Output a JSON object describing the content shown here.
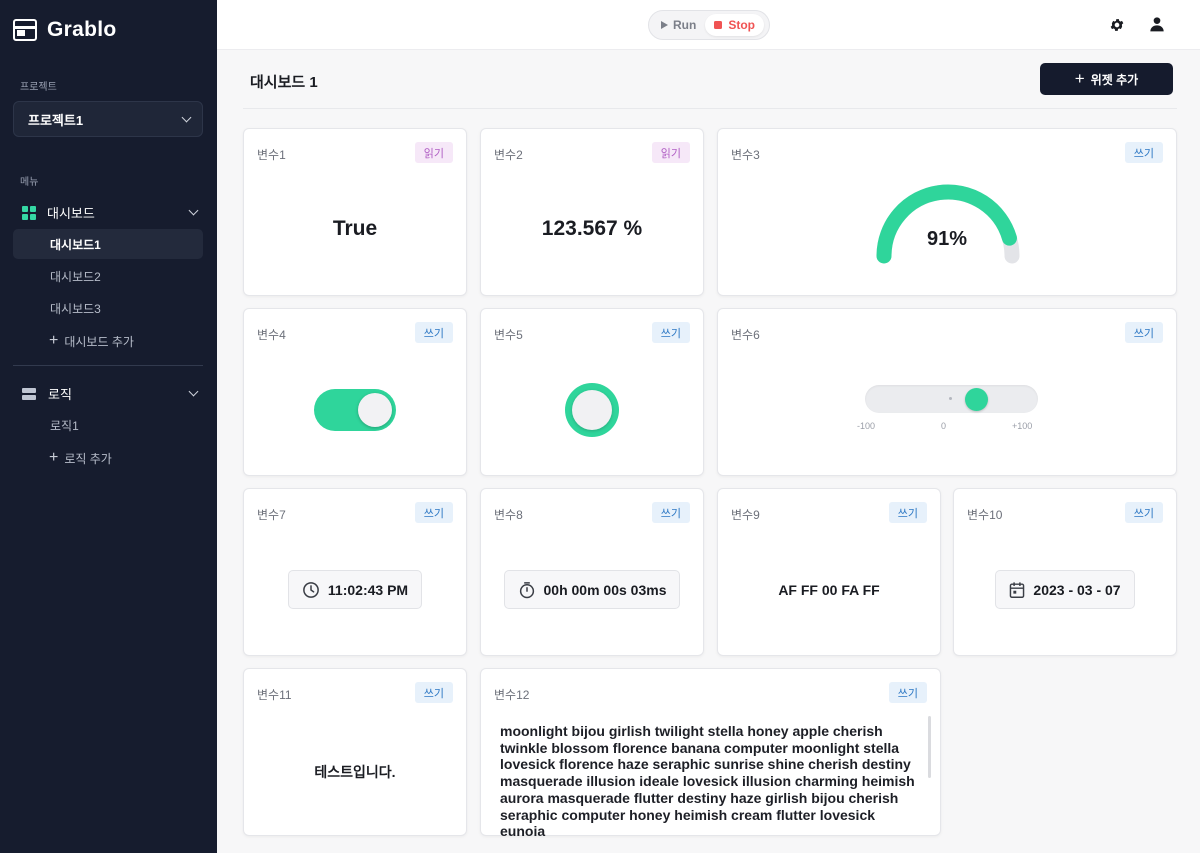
{
  "sidebar": {
    "brand": "Grablo",
    "project_label": "프로젝트",
    "project_selected": "프로젝트1",
    "menu_label": "메뉴",
    "dashboard_group": "대시보드",
    "dashboards": [
      "대시보드1",
      "대시보드2",
      "대시보드3"
    ],
    "add_dashboard": "대시보드 추가",
    "logic_group": "로직",
    "logics": [
      "로직1"
    ],
    "add_logic": "로직 추가"
  },
  "topbar": {
    "run": "Run",
    "stop": "Stop"
  },
  "header": {
    "title": "대시보드 1",
    "add_widget": "위젯 추가"
  },
  "badges": {
    "read": "읽기",
    "write": "쓰기"
  },
  "widgets": [
    {
      "label": "변수1",
      "mode": "읽기",
      "value": "True"
    },
    {
      "label": "변수2",
      "mode": "읽기",
      "value": "123.567 %"
    },
    {
      "label": "변수3",
      "mode": "쓰기",
      "value": "91%",
      "gauge_fraction": 0.91
    },
    {
      "label": "변수4",
      "mode": "쓰기",
      "toggle_on": true
    },
    {
      "label": "변수5",
      "mode": "쓰기"
    },
    {
      "label": "변수6",
      "mode": "쓰기",
      "slider_min": "-100",
      "slider_mid": "0",
      "slider_max": "+100",
      "slider_value": 35
    },
    {
      "label": "변수7",
      "mode": "쓰기",
      "value": "11:02:43 PM"
    },
    {
      "label": "변수8",
      "mode": "쓰기",
      "value": "00h 00m 00s 03ms"
    },
    {
      "label": "변수9",
      "mode": "쓰기",
      "value": "AF FF 00 FA FF"
    },
    {
      "label": "변수10",
      "mode": "쓰기",
      "value": "2023 - 03 - 07"
    },
    {
      "label": "변수11",
      "mode": "쓰기",
      "value": "테스트입니다."
    },
    {
      "label": "변수12",
      "mode": "쓰기",
      "value": "moonlight bijou girlish twilight stella honey apple cherish twinkle blossom florence banana computer moonlight stella lovesick florence haze seraphic sunrise shine cherish destiny masquerade illusion ideale lovesick illusion charming heimish aurora masquerade flutter destiny haze girlish bijou cherish seraphic computer honey heimish cream flutter lovesick eunoia"
    }
  ],
  "colors": {
    "accent": "#2fd59b",
    "sidebar": "#161c2e",
    "stop": "#f05353"
  }
}
